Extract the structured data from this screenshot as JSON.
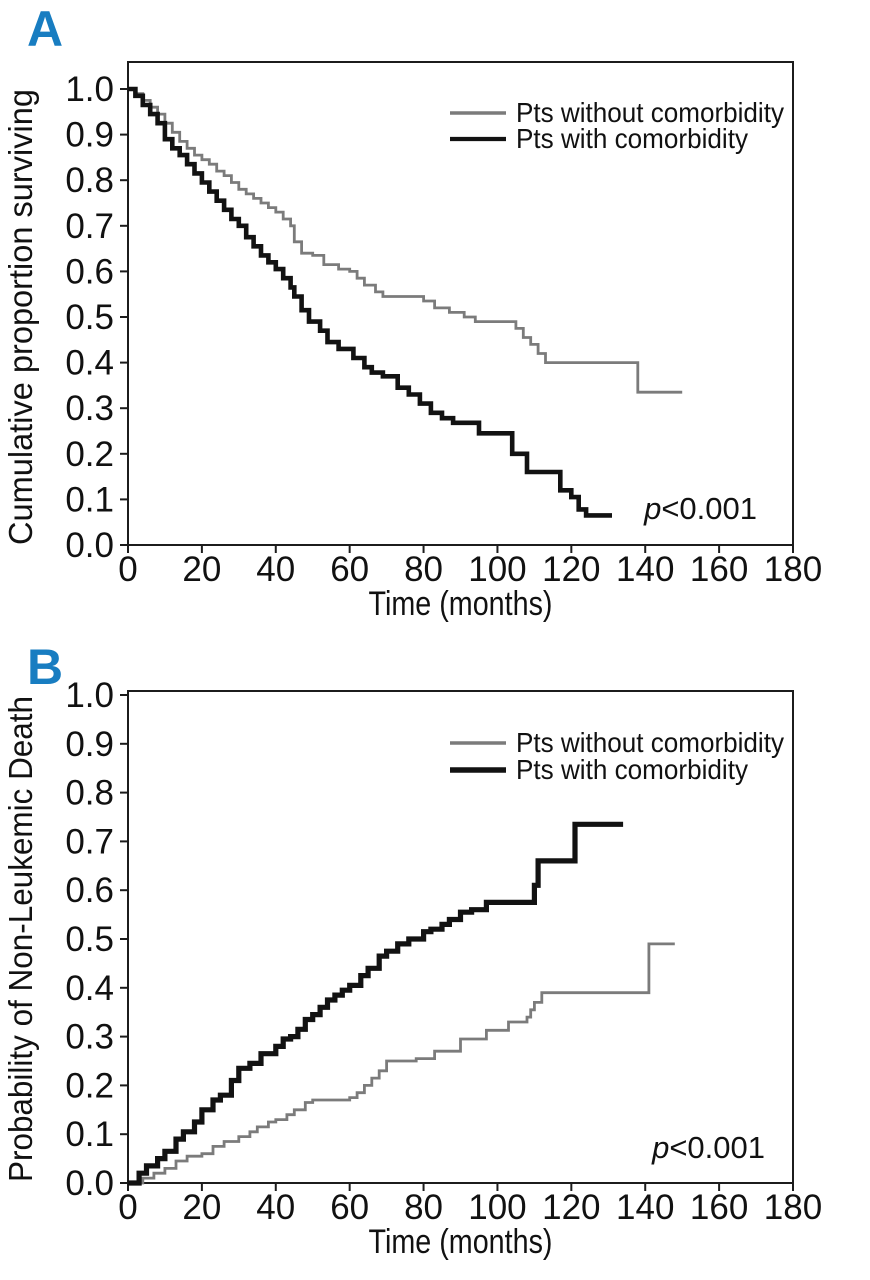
{
  "figure": {
    "background": "#ffffff",
    "panels": [
      {
        "letter": "A",
        "letter_color": "#187dc1"
      },
      {
        "letter": "B",
        "letter_color": "#187dc1"
      }
    ]
  },
  "chart_data": [
    {
      "type": "line",
      "subtype": "kaplan-meier-step",
      "panel": "A",
      "title": "",
      "xlabel": "Time (months)",
      "ylabel": "Cumulative proportion surviving",
      "xlim": [
        0,
        180
      ],
      "ylim": [
        0.0,
        1.0
      ],
      "grid": false,
      "legend_position": "top-right-inside",
      "xtick_values": [
        0,
        20,
        40,
        60,
        80,
        100,
        120,
        140,
        160,
        180
      ],
      "xtick_labels": [
        "0",
        "20",
        "40",
        "60",
        "80",
        "100",
        "120",
        "140",
        "160",
        "180"
      ],
      "ytick_values": [
        0.0,
        0.1,
        0.2,
        0.3,
        0.4,
        0.5,
        0.6,
        0.7,
        0.8,
        0.9,
        1.0
      ],
      "ytick_labels": [
        "0.0",
        "0.1",
        "0.2",
        "0.3",
        "0.4",
        "0.5",
        "0.6",
        "0.7",
        "0.8",
        "0.9",
        "1.0"
      ],
      "annotation": {
        "text": "p<0.001",
        "italic_prefix": "p",
        "rest": "<0.001"
      },
      "series": [
        {
          "name": "Pts without comorbidity",
          "color": "#7b7b7b",
          "stroke_width": 2.8,
          "points": [
            [
              0,
              1.0
            ],
            [
              2,
              0.99
            ],
            [
              4,
              0.975
            ],
            [
              6,
              0.96
            ],
            [
              8,
              0.945
            ],
            [
              10,
              0.925
            ],
            [
              12,
              0.905
            ],
            [
              14,
              0.885
            ],
            [
              16,
              0.87
            ],
            [
              18,
              0.855
            ],
            [
              20,
              0.845
            ],
            [
              22,
              0.835
            ],
            [
              24,
              0.82
            ],
            [
              26,
              0.81
            ],
            [
              28,
              0.795
            ],
            [
              30,
              0.78
            ],
            [
              32,
              0.77
            ],
            [
              34,
              0.76
            ],
            [
              36,
              0.75
            ],
            [
              38,
              0.74
            ],
            [
              40,
              0.73
            ],
            [
              42,
              0.715
            ],
            [
              44,
              0.7
            ],
            [
              45,
              0.665
            ],
            [
              47,
              0.64
            ],
            [
              50,
              0.635
            ],
            [
              53,
              0.615
            ],
            [
              57,
              0.605
            ],
            [
              60,
              0.6
            ],
            [
              62,
              0.585
            ],
            [
              64,
              0.57
            ],
            [
              67,
              0.555
            ],
            [
              69,
              0.545
            ],
            [
              80,
              0.535
            ],
            [
              83,
              0.52
            ],
            [
              87,
              0.51
            ],
            [
              91,
              0.5
            ],
            [
              94,
              0.49
            ],
            [
              105,
              0.475
            ],
            [
              107,
              0.455
            ],
            [
              109,
              0.44
            ],
            [
              111,
              0.42
            ],
            [
              113,
              0.4
            ],
            [
              138,
              0.335
            ],
            [
              150,
              0.335
            ]
          ]
        },
        {
          "name": "Pts with comorbidity",
          "color": "#121212",
          "stroke_width": 4.6,
          "points": [
            [
              0,
              1.0
            ],
            [
              2,
              0.985
            ],
            [
              4,
              0.965
            ],
            [
              6,
              0.945
            ],
            [
              8,
              0.925
            ],
            [
              10,
              0.89
            ],
            [
              12,
              0.87
            ],
            [
              14,
              0.855
            ],
            [
              16,
              0.835
            ],
            [
              18,
              0.815
            ],
            [
              20,
              0.795
            ],
            [
              22,
              0.775
            ],
            [
              24,
              0.755
            ],
            [
              26,
              0.735
            ],
            [
              28,
              0.715
            ],
            [
              30,
              0.7
            ],
            [
              32,
              0.675
            ],
            [
              34,
              0.655
            ],
            [
              36,
              0.635
            ],
            [
              38,
              0.62
            ],
            [
              40,
              0.605
            ],
            [
              42,
              0.585
            ],
            [
              44,
              0.565
            ],
            [
              45,
              0.545
            ],
            [
              47,
              0.515
            ],
            [
              49,
              0.49
            ],
            [
              52,
              0.47
            ],
            [
              54,
              0.445
            ],
            [
              57,
              0.43
            ],
            [
              61,
              0.41
            ],
            [
              64,
              0.39
            ],
            [
              66,
              0.378
            ],
            [
              69,
              0.37
            ],
            [
              73,
              0.345
            ],
            [
              76,
              0.33
            ],
            [
              79,
              0.31
            ],
            [
              82,
              0.29
            ],
            [
              85,
              0.278
            ],
            [
              88,
              0.268
            ],
            [
              95,
              0.245
            ],
            [
              104,
              0.2
            ],
            [
              108,
              0.16
            ],
            [
              117,
              0.12
            ],
            [
              120,
              0.105
            ],
            [
              122,
              0.078
            ],
            [
              124,
              0.065
            ],
            [
              131,
              0.065
            ]
          ]
        }
      ]
    },
    {
      "type": "line",
      "subtype": "cumulative-incidence-step",
      "panel": "B",
      "title": "",
      "xlabel": "Time (months)",
      "ylabel": "Probability of Non-Leukemic Death",
      "xlim": [
        0,
        180
      ],
      "ylim": [
        0.0,
        1.0
      ],
      "grid": false,
      "legend_position": "top-right-inside",
      "xtick_values": [
        0,
        20,
        40,
        60,
        80,
        100,
        120,
        140,
        160,
        180
      ],
      "xtick_labels": [
        "0",
        "20",
        "40",
        "60",
        "80",
        "100",
        "120",
        "140",
        "160",
        "180"
      ],
      "ytick_values": [
        0.0,
        0.1,
        0.2,
        0.3,
        0.4,
        0.5,
        0.6,
        0.7,
        0.8,
        0.9,
        1.0
      ],
      "ytick_labels": [
        "0.0",
        "0.1",
        "0.2",
        "0.3",
        "0.4",
        "0.5",
        "0.6",
        "0.7",
        "0.8",
        "0.9",
        "1.0"
      ],
      "annotation": {
        "text": "p<0.001",
        "italic_prefix": "p",
        "rest": "<0.001"
      },
      "series": [
        {
          "name": "Pts without comorbidity",
          "color": "#7b7b7b",
          "stroke_width": 2.8,
          "points": [
            [
              0,
              0.0
            ],
            [
              4,
              0.01
            ],
            [
              7,
              0.02
            ],
            [
              10,
              0.03
            ],
            [
              13,
              0.045
            ],
            [
              16,
              0.055
            ],
            [
              20,
              0.06
            ],
            [
              23,
              0.075
            ],
            [
              26,
              0.085
            ],
            [
              30,
              0.095
            ],
            [
              33,
              0.105
            ],
            [
              35,
              0.115
            ],
            [
              38,
              0.125
            ],
            [
              40,
              0.13
            ],
            [
              43,
              0.14
            ],
            [
              45,
              0.15
            ],
            [
              48,
              0.165
            ],
            [
              50,
              0.17
            ],
            [
              60,
              0.175
            ],
            [
              62,
              0.185
            ],
            [
              64,
              0.2
            ],
            [
              66,
              0.215
            ],
            [
              68,
              0.23
            ],
            [
              70,
              0.25
            ],
            [
              78,
              0.255
            ],
            [
              83,
              0.27
            ],
            [
              90,
              0.295
            ],
            [
              97,
              0.313
            ],
            [
              103,
              0.33
            ],
            [
              108,
              0.34
            ],
            [
              109,
              0.355
            ],
            [
              110,
              0.37
            ],
            [
              112,
              0.39
            ],
            [
              140,
              0.39
            ],
            [
              141,
              0.49
            ],
            [
              148,
              0.49
            ]
          ]
        },
        {
          "name": "Pts with comorbidity",
          "color": "#121212",
          "stroke_width": 5.2,
          "points": [
            [
              0,
              0.0
            ],
            [
              3,
              0.02
            ],
            [
              5,
              0.035
            ],
            [
              8,
              0.05
            ],
            [
              10,
              0.065
            ],
            [
              13,
              0.09
            ],
            [
              15,
              0.105
            ],
            [
              18,
              0.125
            ],
            [
              20,
              0.15
            ],
            [
              23,
              0.17
            ],
            [
              25,
              0.18
            ],
            [
              28,
              0.21
            ],
            [
              30,
              0.235
            ],
            [
              33,
              0.245
            ],
            [
              36,
              0.265
            ],
            [
              40,
              0.28
            ],
            [
              42,
              0.295
            ],
            [
              44,
              0.3
            ],
            [
              46,
              0.315
            ],
            [
              48,
              0.335
            ],
            [
              50,
              0.345
            ],
            [
              52,
              0.36
            ],
            [
              54,
              0.375
            ],
            [
              56,
              0.385
            ],
            [
              58,
              0.395
            ],
            [
              60,
              0.405
            ],
            [
              63,
              0.425
            ],
            [
              65,
              0.44
            ],
            [
              68,
              0.465
            ],
            [
              70,
              0.475
            ],
            [
              73,
              0.49
            ],
            [
              76,
              0.5
            ],
            [
              80,
              0.515
            ],
            [
              82,
              0.52
            ],
            [
              85,
              0.53
            ],
            [
              87,
              0.54
            ],
            [
              90,
              0.555
            ],
            [
              93,
              0.56
            ],
            [
              97,
              0.575
            ],
            [
              110,
              0.61
            ],
            [
              111,
              0.66
            ],
            [
              121,
              0.735
            ],
            [
              134,
              0.735
            ]
          ]
        }
      ]
    }
  ]
}
